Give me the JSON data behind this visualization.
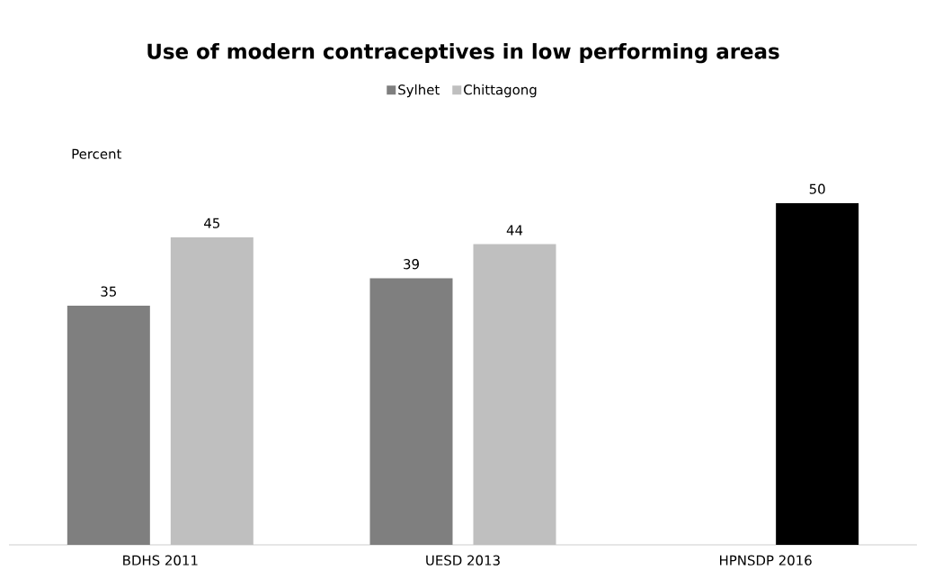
{
  "chart_data": {
    "type": "bar",
    "title": "Use of modern contraceptives in low performing areas",
    "ylabel": "Percent",
    "categories": [
      "BDHS 2011",
      "UESD 2013",
      "HPNSDP 2016"
    ],
    "series": [
      {
        "name": "Sylhet",
        "color": "#7f7f7f",
        "values": [
          35,
          39,
          null
        ]
      },
      {
        "name": "Chittagong",
        "color": "#bfbfbf",
        "colors": [
          "#bfbfbf",
          "#bfbfbf",
          "#000000"
        ],
        "values": [
          45,
          44,
          50
        ]
      }
    ],
    "data_labels": true,
    "legend": "top",
    "tick_labels": "x",
    "grid": false
  }
}
